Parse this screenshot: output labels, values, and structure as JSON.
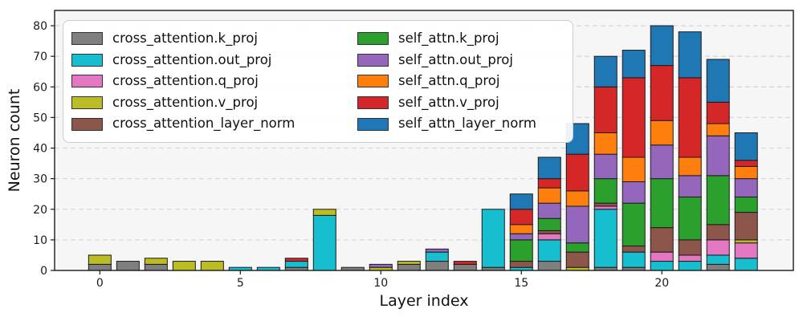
{
  "figure": {
    "plot_bg": "#f6f6f6",
    "grid_color": "#d8d8d8",
    "spine_color": "#1a1a1a",
    "bar_edge_color": "#1a1a1a",
    "tick_label_color": "#1a1a1a"
  },
  "chart_data": {
    "type": "bar",
    "stacked": true,
    "title": "",
    "xlabel": "Layer index",
    "ylabel": "Neuron count",
    "x": [
      0,
      1,
      2,
      3,
      4,
      5,
      6,
      7,
      8,
      9,
      10,
      11,
      12,
      13,
      14,
      15,
      16,
      17,
      18,
      19,
      20,
      21,
      22,
      23
    ],
    "xticks": [
      0,
      5,
      10,
      15,
      20
    ],
    "yticks": [
      0,
      10,
      20,
      30,
      40,
      50,
      60,
      70,
      80
    ],
    "xlim": [
      -1.61,
      24.68
    ],
    "ylim": [
      0,
      85
    ],
    "grid": "horizontal-dashed",
    "legend_position": "upper-left",
    "legend_columns": 2,
    "series": [
      {
        "name": "cross_attention.k_proj",
        "color": "#7f7f7f",
        "values": [
          2,
          3,
          2,
          0,
          0,
          0,
          0,
          1,
          0,
          1,
          0,
          2,
          3,
          2,
          1,
          0,
          3,
          0,
          1,
          1,
          0,
          0,
          2,
          0
        ]
      },
      {
        "name": "cross_attention.out_proj",
        "color": "#17becf",
        "values": [
          0,
          0,
          0,
          0,
          0,
          1,
          1,
          2,
          18,
          0,
          0,
          0,
          3,
          0,
          19,
          1,
          7,
          0,
          19,
          5,
          3,
          3,
          3,
          4
        ]
      },
      {
        "name": "cross_attention.q_proj",
        "color": "#e377c2",
        "values": [
          0,
          0,
          0,
          0,
          0,
          0,
          0,
          0,
          0,
          0,
          0,
          0,
          0,
          0,
          0,
          0,
          2,
          0,
          1,
          0,
          3,
          2,
          5,
          5
        ]
      },
      {
        "name": "cross_attention.v_proj",
        "color": "#bcbd22",
        "values": [
          3,
          0,
          2,
          3,
          3,
          0,
          0,
          0,
          2,
          0,
          1,
          1,
          0,
          0,
          0,
          0,
          0,
          1,
          0,
          0,
          0,
          0,
          0,
          1
        ]
      },
      {
        "name": "cross_attention_layer_norm",
        "color": "#8c564b",
        "values": [
          0,
          0,
          0,
          0,
          0,
          0,
          0,
          0,
          0,
          0,
          0,
          0,
          0,
          0,
          0,
          2,
          1,
          5,
          1,
          2,
          8,
          5,
          5,
          9
        ]
      },
      {
        "name": "self_attn.k_proj",
        "color": "#2ca02c",
        "values": [
          0,
          0,
          0,
          0,
          0,
          0,
          0,
          0,
          0,
          0,
          0,
          0,
          0,
          0,
          0,
          7,
          4,
          3,
          8,
          14,
          16,
          14,
          16,
          5
        ]
      },
      {
        "name": "self_attn.out_proj",
        "color": "#9467bd",
        "values": [
          0,
          0,
          0,
          0,
          0,
          0,
          0,
          0,
          0,
          0,
          1,
          0,
          1,
          0,
          0,
          2,
          5,
          12,
          8,
          7,
          11,
          7,
          13,
          6
        ]
      },
      {
        "name": "self_attn.q_proj",
        "color": "#ff7f0e",
        "values": [
          0,
          0,
          0,
          0,
          0,
          0,
          0,
          0,
          0,
          0,
          0,
          0,
          0,
          0,
          0,
          3,
          5,
          5,
          7,
          8,
          8,
          6,
          4,
          4
        ]
      },
      {
        "name": "self_attn.v_proj",
        "color": "#d62728",
        "values": [
          0,
          0,
          0,
          0,
          0,
          0,
          0,
          1,
          0,
          0,
          0,
          0,
          0,
          1,
          0,
          5,
          3,
          12,
          15,
          26,
          18,
          26,
          7,
          2
        ]
      },
      {
        "name": "self_attn_layer_norm",
        "color": "#1f77b4",
        "values": [
          0,
          0,
          0,
          0,
          0,
          0,
          0,
          0,
          0,
          0,
          0,
          0,
          0,
          0,
          0,
          5,
          7,
          10,
          10,
          9,
          13,
          15,
          14,
          9
        ]
      }
    ]
  }
}
